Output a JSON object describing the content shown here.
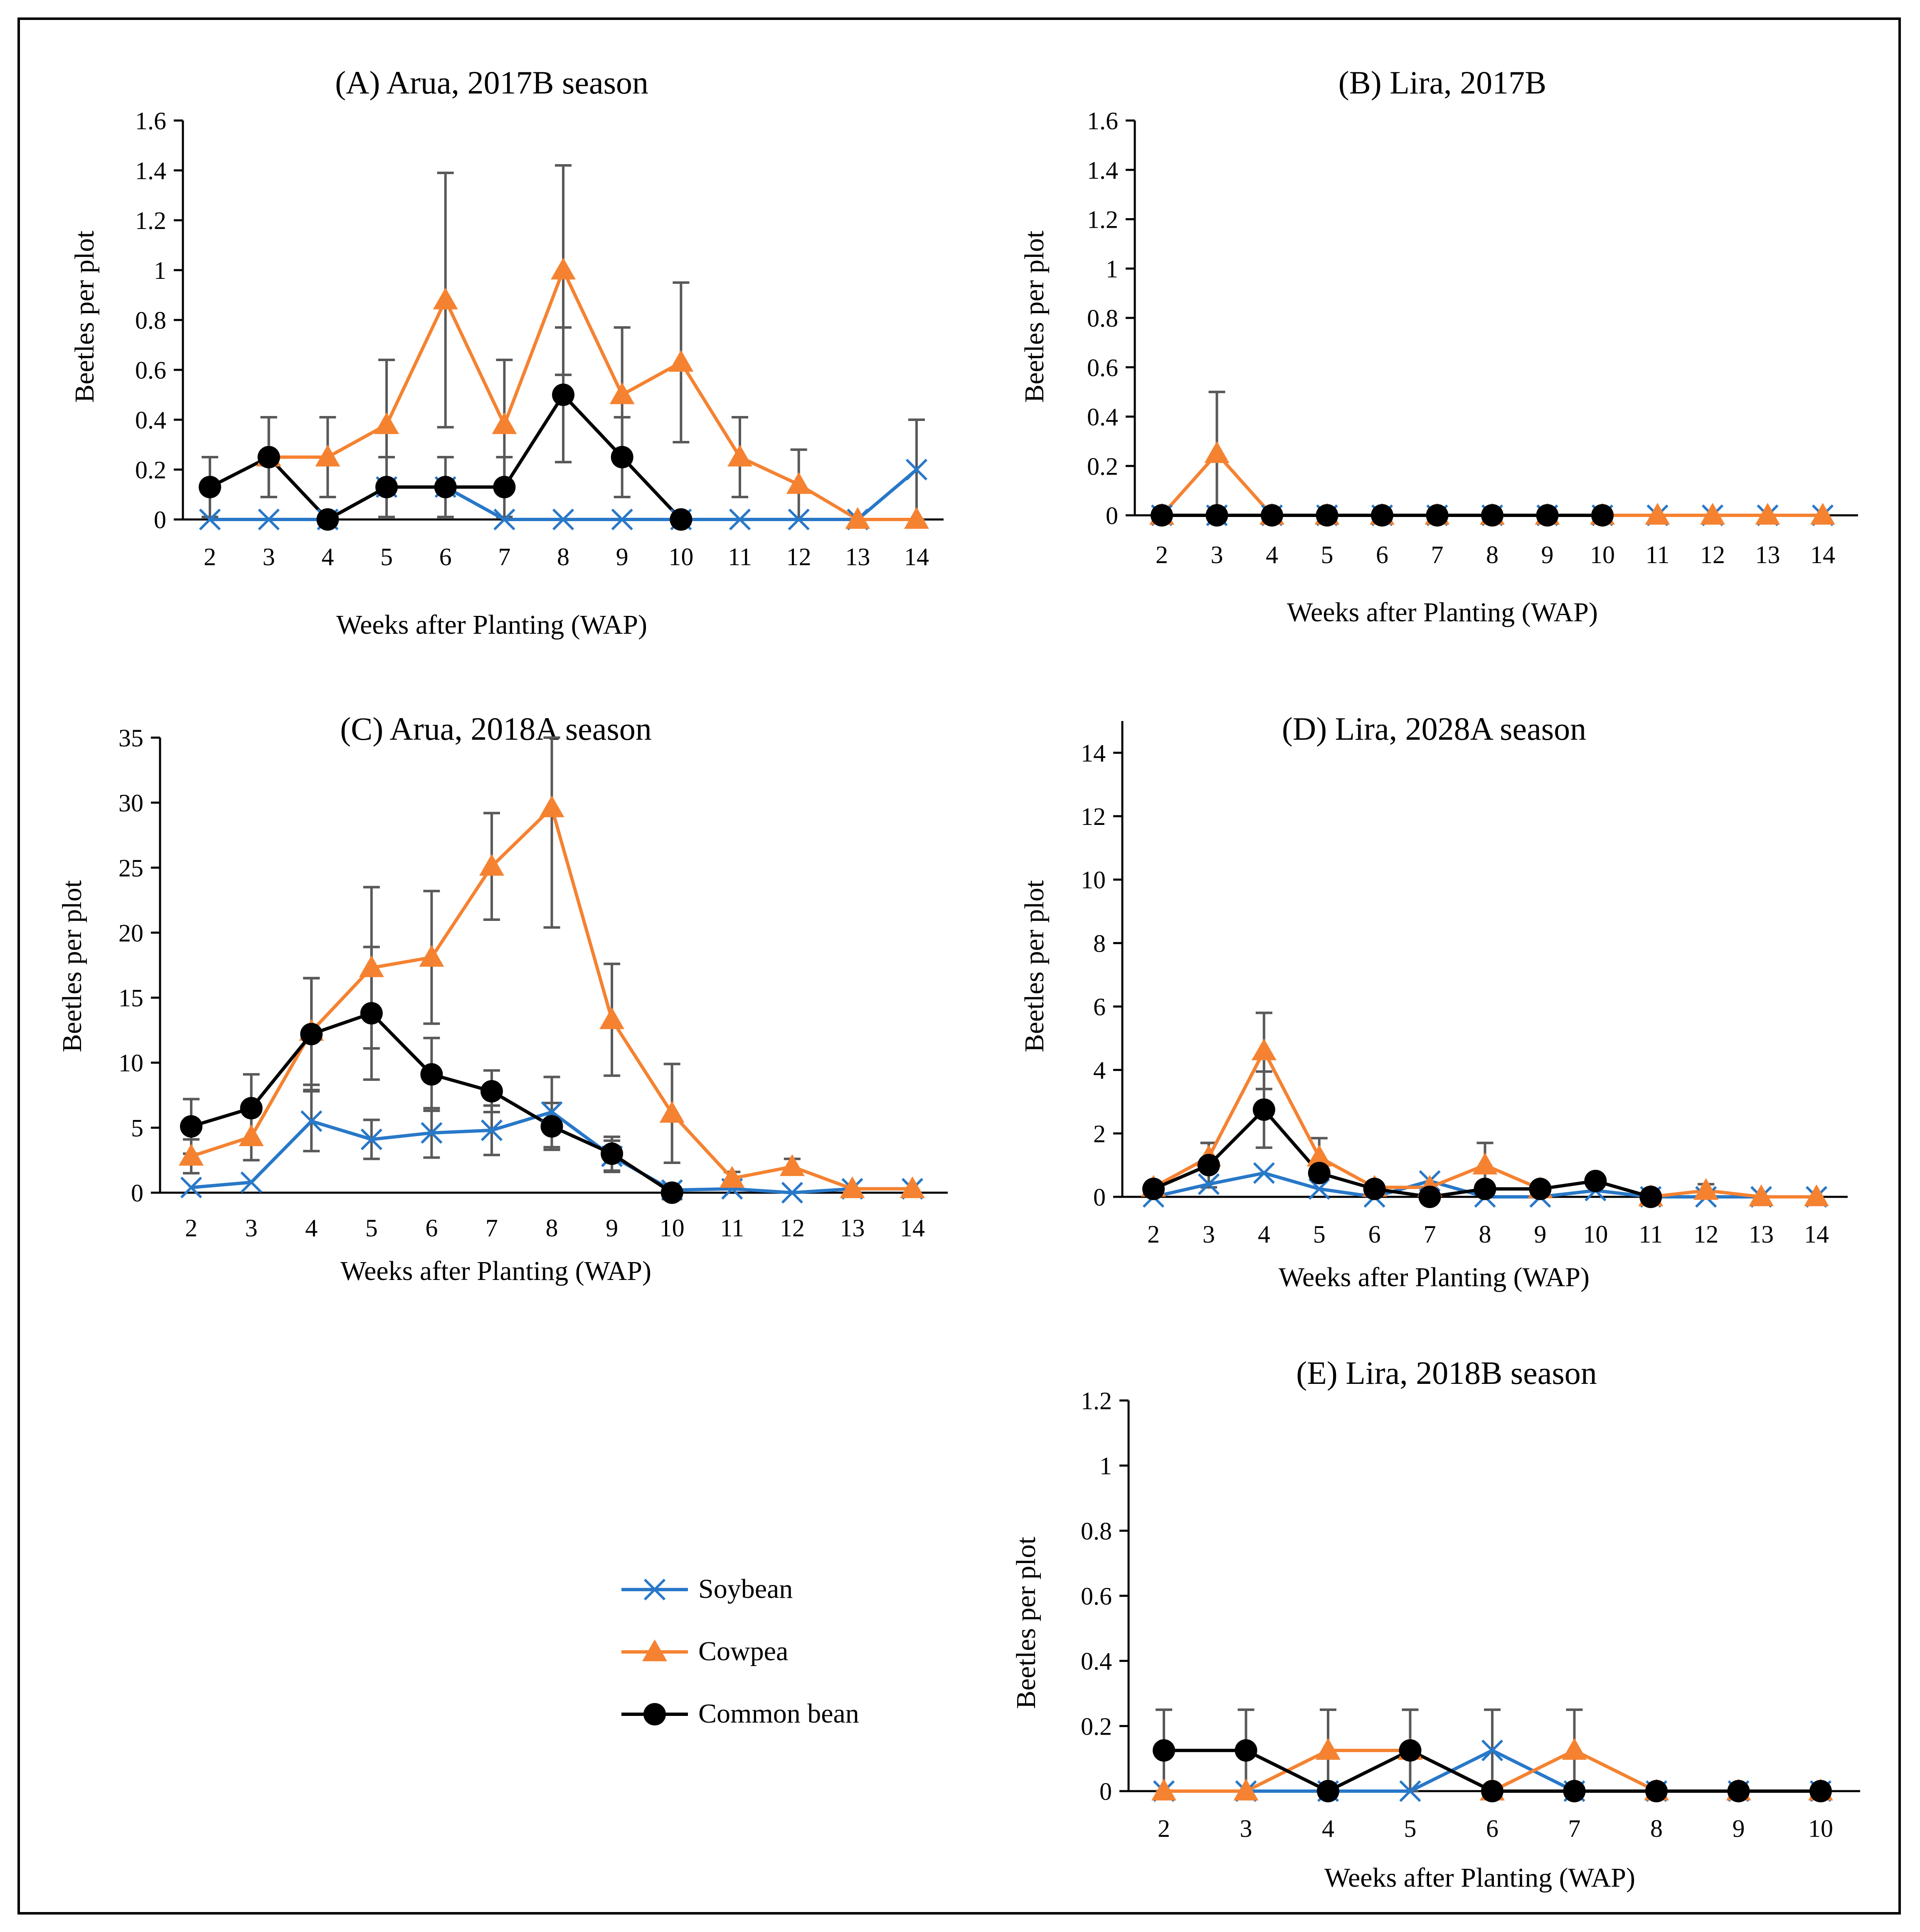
{
  "colors": {
    "soybean": "#2878C8",
    "cowpea": "#F58231",
    "common_bean": "#000000",
    "error_bar": "#595959"
  },
  "legend": {
    "items": [
      {
        "key": "soybean",
        "label": "Soybean",
        "marker": "x-icon"
      },
      {
        "key": "cowpea",
        "label": "Cowpea",
        "marker": "triangle-icon"
      },
      {
        "key": "common_bean",
        "label": "Common bean",
        "marker": "circle-icon"
      }
    ]
  },
  "chart_data": [
    {
      "id": "A",
      "type": "line",
      "title": "(A) Arua, 2017B season",
      "xlabel": "Weeks after Planting (WAP)",
      "ylabel": "Beetles per plot",
      "ylim": [
        0,
        1.6
      ],
      "yticks": [
        "0",
        "0.2",
        "0.4",
        "0.6",
        "0.8",
        "1",
        "1.2",
        "1.4",
        "1.6"
      ],
      "categories": [
        "2",
        "3",
        "4",
        "5",
        "6",
        "7",
        "8",
        "9",
        "10",
        "11",
        "12",
        "13",
        "14"
      ],
      "series": [
        {
          "name": "Soybean",
          "key": "soybean",
          "values": [
            0,
            0,
            0,
            0.13,
            0.13,
            0,
            0,
            0,
            0,
            0,
            0,
            0,
            0.2
          ],
          "err": [
            0,
            0,
            0,
            0,
            0,
            0,
            0,
            0,
            0,
            0,
            0,
            0,
            0.2
          ]
        },
        {
          "name": "Cowpea",
          "key": "cowpea",
          "values": [
            null,
            0.25,
            0.25,
            0.38,
            0.88,
            0.38,
            1.0,
            0.5,
            0.63,
            0.25,
            0.14,
            0,
            0
          ],
          "err": [
            0,
            0.16,
            0.16,
            0.26,
            0.51,
            0.26,
            0.42,
            0.27,
            0.32,
            0.16,
            0.14,
            0,
            0
          ]
        },
        {
          "name": "Common bean",
          "key": "common_bean",
          "values": [
            0.13,
            0.25,
            0,
            0.13,
            0.13,
            0.13,
            0.5,
            0.25,
            0,
            null,
            null,
            null,
            null
          ],
          "err": [
            0.12,
            0.16,
            0,
            0.12,
            0.12,
            0.12,
            0.27,
            0.16,
            0,
            0,
            0,
            0,
            0
          ]
        }
      ]
    },
    {
      "id": "B",
      "type": "line",
      "title": "(B) Lira, 2017B",
      "xlabel": "Weeks after Planting (WAP)",
      "ylabel": "Beetles per plot",
      "ylim": [
        0,
        1.6
      ],
      "yticks": [
        "0",
        "0.2",
        "0.4",
        "0.6",
        "0.8",
        "1",
        "1.2",
        "1.4",
        "1.6"
      ],
      "categories": [
        "2",
        "3",
        "4",
        "5",
        "6",
        "7",
        "8",
        "9",
        "10",
        "11",
        "12",
        "13",
        "14"
      ],
      "series": [
        {
          "name": "Soybean",
          "key": "soybean",
          "values": [
            0,
            0,
            0,
            0,
            0,
            0,
            0,
            0,
            0,
            0,
            0,
            0,
            0
          ],
          "err": [
            0,
            0,
            0,
            0,
            0,
            0,
            0,
            0,
            0,
            0,
            0,
            0,
            0
          ]
        },
        {
          "name": "Cowpea",
          "key": "cowpea",
          "values": [
            0,
            0.25,
            0,
            0,
            0,
            0,
            0,
            0,
            0,
            0,
            0,
            0,
            0
          ],
          "err": [
            0,
            0.25,
            0,
            0,
            0,
            0,
            0,
            0,
            0,
            0,
            0,
            0,
            0
          ]
        },
        {
          "name": "Common bean",
          "key": "common_bean",
          "values": [
            0,
            0,
            0,
            0,
            0,
            0,
            0,
            0,
            0,
            null,
            null,
            null,
            null
          ],
          "err": [
            0,
            0,
            0,
            0,
            0,
            0,
            0,
            0,
            0,
            0,
            0,
            0,
            0
          ]
        }
      ]
    },
    {
      "id": "C",
      "type": "line",
      "title": "(C) Arua, 2018A season",
      "xlabel": "Weeks after Planting (WAP)",
      "ylabel": "Beetles per plot",
      "ylim": [
        0,
        35
      ],
      "yticks": [
        "0",
        "5",
        "10",
        "15",
        "20",
        "25",
        "30",
        "35"
      ],
      "categories": [
        "2",
        "3",
        "4",
        "5",
        "6",
        "7",
        "8",
        "9",
        "10",
        "11",
        "12",
        "13",
        "14"
      ],
      "series": [
        {
          "name": "Soybean",
          "key": "soybean",
          "values": [
            0.4,
            0.8,
            5.5,
            4.1,
            4.6,
            4.8,
            6.2,
            2.8,
            0.2,
            0.3,
            0,
            0.3,
            0.3
          ],
          "err": [
            0,
            0,
            2.3,
            1.5,
            1.9,
            1.9,
            2.7,
            1.2,
            0,
            0,
            0,
            0,
            0
          ]
        },
        {
          "name": "Cowpea",
          "key": "cowpea",
          "values": [
            2.8,
            4.3,
            12.4,
            17.3,
            18.1,
            25.1,
            29.6,
            13.3,
            6.1,
            1.1,
            2.0,
            0.3,
            0.3
          ],
          "err": [
            1.3,
            1.8,
            4.1,
            6.2,
            5.1,
            4.1,
            9.2,
            4.3,
            3.8,
            0.5,
            0.6,
            0,
            0
          ]
        },
        {
          "name": "Common bean",
          "key": "common_bean",
          "values": [
            5.1,
            6.5,
            12.2,
            13.8,
            9.1,
            7.8,
            5.1,
            3.0,
            0,
            null,
            null,
            null,
            null
          ],
          "err": [
            2.1,
            2.6,
            4.3,
            5.1,
            2.8,
            1.6,
            1.8,
            1.3,
            0,
            0,
            0,
            0,
            0
          ]
        }
      ]
    },
    {
      "id": "D",
      "type": "line",
      "title": "(D) Lira, 2028A season",
      "xlabel": "Weeks after Planting (WAP)",
      "ylabel": "Beetles per plot",
      "ylim": [
        0,
        15
      ],
      "yticks": [
        "0",
        "2",
        "4",
        "6",
        "8",
        "10",
        "12",
        "14"
      ],
      "categories": [
        "2",
        "3",
        "4",
        "5",
        "6",
        "7",
        "8",
        "9",
        "10",
        "11",
        "12",
        "13",
        "14"
      ],
      "series": [
        {
          "name": "Soybean",
          "key": "soybean",
          "values": [
            0,
            0.4,
            0.75,
            0.25,
            0,
            0.5,
            0,
            0,
            0.2,
            0,
            0,
            0,
            0
          ],
          "err": [
            0,
            0,
            0,
            0,
            0,
            0,
            0,
            0,
            0,
            0,
            0,
            0,
            0
          ]
        },
        {
          "name": "Cowpea",
          "key": "cowpea",
          "values": [
            0.3,
            1.25,
            4.6,
            1.25,
            0.3,
            0.3,
            1.0,
            0.25,
            null,
            0,
            0.2,
            0,
            0
          ],
          "err": [
            0,
            0.45,
            1.2,
            0.6,
            0,
            0,
            0.7,
            0,
            0,
            0,
            0.2,
            0,
            0
          ]
        },
        {
          "name": "Common bean",
          "key": "common_bean",
          "values": [
            0.25,
            1.0,
            2.75,
            0.75,
            0.25,
            0,
            0.25,
            0.25,
            0.5,
            0,
            null,
            null,
            null
          ],
          "err": [
            0,
            0.7,
            1.2,
            0,
            0,
            0,
            0,
            0,
            0,
            0,
            0,
            0,
            0
          ]
        }
      ]
    },
    {
      "id": "E",
      "type": "line",
      "title": "(E) Lira, 2018B season",
      "xlabel": "Weeks after Planting (WAP)",
      "ylabel": "Beetles per plot",
      "ylim": [
        0,
        1.2
      ],
      "yticks": [
        "0",
        "0.2",
        "0.4",
        "0.6",
        "0.8",
        "1",
        "1.2"
      ],
      "categories": [
        "2",
        "3",
        "4",
        "5",
        "6",
        "7",
        "8",
        "9",
        "10"
      ],
      "series": [
        {
          "name": "Soybean",
          "key": "soybean",
          "values": [
            0,
            0,
            0,
            0,
            0.125,
            0,
            0,
            0,
            0
          ],
          "err": [
            0,
            0,
            0,
            0,
            0.125,
            0,
            0,
            0,
            0
          ]
        },
        {
          "name": "Cowpea",
          "key": "cowpea",
          "values": [
            0,
            0,
            0.125,
            0.125,
            0,
            0.125,
            0,
            0,
            0
          ],
          "err": [
            0,
            0,
            0.125,
            0.125,
            0,
            0.125,
            0,
            0,
            0
          ]
        },
        {
          "name": "Common bean",
          "key": "common_bean",
          "values": [
            0.125,
            0.125,
            0,
            0.125,
            0,
            0,
            0,
            0,
            0
          ],
          "err": [
            0.125,
            0.125,
            0,
            0.125,
            0,
            0,
            0,
            0,
            0
          ]
        }
      ]
    }
  ]
}
